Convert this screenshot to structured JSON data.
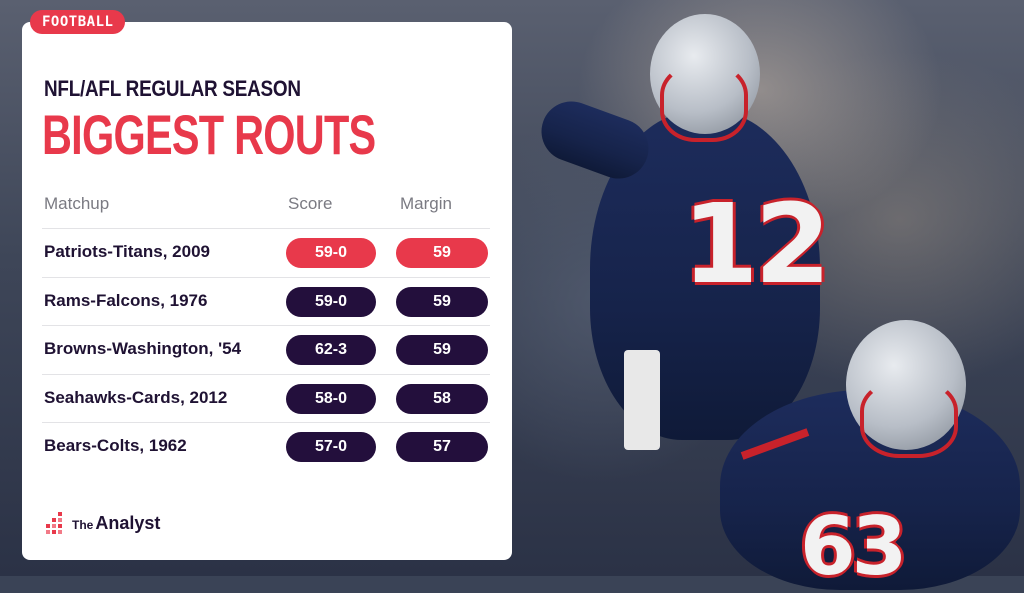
{
  "header": {
    "tag": "FOOTBALL",
    "subtitle": "NFL/AFL REGULAR SEASON",
    "title": "BIGGEST ROUTS"
  },
  "table": {
    "columns": [
      "Matchup",
      "Score",
      "Margin"
    ],
    "rows": [
      {
        "matchup": "Patriots-Titans, 2009",
        "score": "59-0",
        "margin": "59",
        "highlight": true
      },
      {
        "matchup": "Rams-Falcons, 1976",
        "score": "59-0",
        "margin": "59",
        "highlight": false
      },
      {
        "matchup": "Browns-Washington, '54",
        "score": "62-3",
        "margin": "59",
        "highlight": false
      },
      {
        "matchup": "Seahawks-Cards, 2012",
        "score": "58-0",
        "margin": "58",
        "highlight": false
      },
      {
        "matchup": "Bears-Colts, 1962",
        "score": "57-0",
        "margin": "57",
        "highlight": false
      }
    ]
  },
  "brand": {
    "the": "The",
    "name": "Analyst"
  },
  "photo": {
    "jersey_numbers": [
      "12",
      "63"
    ]
  },
  "colors": {
    "accent": "#e8394b",
    "pill_dark": "#230f3c",
    "text_dark": "#1f1233",
    "muted": "#7a7a82"
  }
}
